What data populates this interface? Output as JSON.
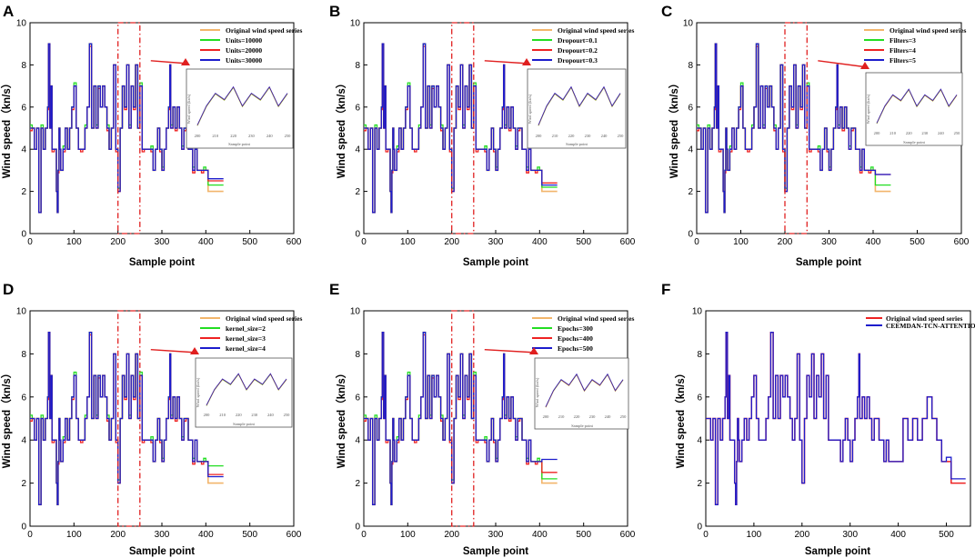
{
  "chart_data": [
    {
      "panel": "A",
      "type": "line",
      "xlabel": "Sample point",
      "ylabel": "Wind speed（kn/s）",
      "xlim": [
        0,
        600
      ],
      "ylim": [
        0,
        10
      ],
      "xticks": [
        0,
        100,
        200,
        300,
        400,
        500,
        600
      ],
      "yticks": [
        0,
        2,
        4,
        6,
        8,
        10
      ],
      "highlight_range": [
        200,
        250
      ],
      "has_inset": true,
      "inset": {
        "xlabel": "Sample point",
        "ylabel": "Wind speed (kn/s)",
        "xticks": [
          "200",
          "210",
          "220",
          "230",
          "240",
          "250"
        ]
      },
      "series": [
        {
          "name": "Original wind speed series",
          "color": "#f2b56b"
        },
        {
          "name": "Units=10000",
          "color": "#22dd22"
        },
        {
          "name": "Units=20000",
          "color": "#ee2222"
        },
        {
          "name": "Units=30000",
          "color": "#1c1ccc"
        }
      ]
    },
    {
      "panel": "B",
      "type": "line",
      "xlabel": "Sample point",
      "ylabel": "Wind speed（kn/s）",
      "xlim": [
        0,
        600
      ],
      "ylim": [
        0,
        10
      ],
      "xticks": [
        0,
        100,
        200,
        300,
        400,
        500,
        600
      ],
      "yticks": [
        0,
        2,
        4,
        6,
        8,
        10
      ],
      "highlight_range": [
        200,
        250
      ],
      "has_inset": true,
      "inset": {
        "xlabel": "Sample point",
        "ylabel": "Wind speed (kn/s)",
        "xticks": [
          "200",
          "210",
          "220",
          "230",
          "240",
          "250"
        ]
      },
      "series": [
        {
          "name": "Original wind speed series",
          "color": "#f2b56b"
        },
        {
          "name": "Dropourt=0.1",
          "color": "#22dd22"
        },
        {
          "name": "Dropourt=0.2",
          "color": "#ee2222"
        },
        {
          "name": "Dropourt=0.3",
          "color": "#1c1ccc"
        }
      ]
    },
    {
      "panel": "C",
      "type": "line",
      "xlabel": "Sample point",
      "ylabel": "Wind speed（kn/s）",
      "xlim": [
        0,
        600
      ],
      "ylim": [
        0,
        10
      ],
      "xticks": [
        0,
        100,
        200,
        300,
        400,
        500,
        600
      ],
      "yticks": [
        0,
        2,
        4,
        6,
        8,
        10
      ],
      "highlight_range": [
        200,
        250
      ],
      "has_inset": true,
      "inset": {
        "xlabel": "Sample point",
        "ylabel": "Wind speed (kn/s)",
        "xticks": [
          "200",
          "210",
          "220",
          "230",
          "240",
          "250"
        ]
      },
      "series": [
        {
          "name": "Original wind speed series",
          "color": "#f2b56b"
        },
        {
          "name": "Filters=3",
          "color": "#22dd22"
        },
        {
          "name": "Filters=4",
          "color": "#ee2222"
        },
        {
          "name": "Filters=5",
          "color": "#1c1ccc"
        }
      ]
    },
    {
      "panel": "D",
      "type": "line",
      "xlabel": "Sample point",
      "ylabel": "Wind speed（kn/s）",
      "xlim": [
        0,
        600
      ],
      "ylim": [
        0,
        10
      ],
      "xticks": [
        0,
        100,
        200,
        300,
        400,
        500,
        600
      ],
      "yticks": [
        0,
        2,
        4,
        6,
        8,
        10
      ],
      "highlight_range": [
        200,
        250
      ],
      "has_inset": true,
      "inset": {
        "xlabel": "Sample point",
        "ylabel": "Wind speed (kn/s)",
        "xticks": [
          "200",
          "210",
          "220",
          "230",
          "240",
          "250"
        ]
      },
      "series": [
        {
          "name": "Original wind speed series",
          "color": "#f2b56b"
        },
        {
          "name": "kernel_size=2",
          "color": "#22dd22"
        },
        {
          "name": "kernel_size=3",
          "color": "#ee2222"
        },
        {
          "name": "kernel_size=4",
          "color": "#1c1ccc"
        }
      ]
    },
    {
      "panel": "E",
      "type": "line",
      "xlabel": "Sample point",
      "ylabel": "Wind speed（kn/s）",
      "xlim": [
        0,
        600
      ],
      "ylim": [
        0,
        10
      ],
      "xticks": [
        0,
        100,
        200,
        300,
        400,
        500,
        600
      ],
      "yticks": [
        0,
        2,
        4,
        6,
        8,
        10
      ],
      "highlight_range": [
        200,
        250
      ],
      "has_inset": true,
      "inset": {
        "xlabel": "Sample point",
        "ylabel": "Wind speed (kn/s)",
        "xticks": [
          "200",
          "210",
          "220",
          "230",
          "240",
          "250"
        ]
      },
      "series": [
        {
          "name": "Original wind speed series",
          "color": "#f2b56b"
        },
        {
          "name": "Epochs=300",
          "color": "#22dd22"
        },
        {
          "name": "Epochs=400",
          "color": "#ee2222"
        },
        {
          "name": "Epochs=500",
          "color": "#1c1ccc"
        }
      ]
    },
    {
      "panel": "F",
      "type": "line",
      "xlabel": "Sample point",
      "ylabel": "Wind speed（kn/s）",
      "xlim": [
        0,
        550
      ],
      "ylim": [
        0,
        10
      ],
      "xticks": [
        0,
        100,
        200,
        300,
        400,
        500
      ],
      "yticks": [
        0,
        2,
        4,
        6,
        8,
        10
      ],
      "has_inset": false,
      "series": [
        {
          "name": "Original wind speed series",
          "color": "#ee2222"
        },
        {
          "name": "CEEMDAN-TCN-ATTENTION",
          "color": "#1c1ccc"
        }
      ]
    }
  ],
  "wind_speed_series": {
    "x": [
      0,
      5,
      10,
      15,
      20,
      25,
      30,
      35,
      40,
      42,
      45,
      48,
      50,
      55,
      60,
      62,
      64,
      66,
      68,
      70,
      75,
      80,
      85,
      90,
      95,
      100,
      105,
      110,
      115,
      120,
      125,
      130,
      135,
      140,
      145,
      150,
      155,
      160,
      165,
      170,
      175,
      180,
      185,
      190,
      195,
      200,
      205,
      210,
      215,
      220,
      225,
      230,
      235,
      240,
      245,
      250,
      255,
      260,
      265,
      270,
      275,
      280,
      285,
      290,
      295,
      300,
      305,
      310,
      315,
      318,
      320,
      325,
      330,
      335,
      340,
      345,
      350,
      355,
      360,
      365,
      370,
      375,
      380,
      385,
      390,
      395,
      400
    ],
    "y": [
      5,
      5,
      4,
      5,
      1,
      5,
      4,
      5,
      6,
      9,
      5,
      7,
      4,
      4,
      2,
      1,
      3,
      5,
      4,
      3,
      4,
      5,
      4,
      5,
      6,
      7,
      5,
      4,
      4,
      4,
      5,
      6,
      9,
      5,
      7,
      5,
      7,
      6,
      7,
      6,
      5,
      4,
      5,
      8,
      4,
      2,
      5,
      7,
      6,
      8,
      5,
      7,
      6,
      8,
      5,
      7,
      4,
      4,
      4,
      4,
      4,
      3,
      4,
      5,
      4,
      3,
      4,
      5,
      6,
      8,
      5,
      6,
      5,
      6,
      5,
      4,
      5,
      5,
      4,
      4,
      3,
      4,
      3,
      3,
      3,
      3,
      3
    ],
    "tails": {
      "A": [
        2.0,
        2.3,
        2.5,
        2.6
      ],
      "B": [
        2.0,
        2.2,
        2.4,
        2.3
      ],
      "C": [
        2.0,
        2.3,
        2.8,
        2.8
      ],
      "D": [
        2.0,
        2.8,
        2.4,
        2.3
      ],
      "E": [
        2.0,
        2.2,
        2.5,
        3.1
      ]
    }
  }
}
